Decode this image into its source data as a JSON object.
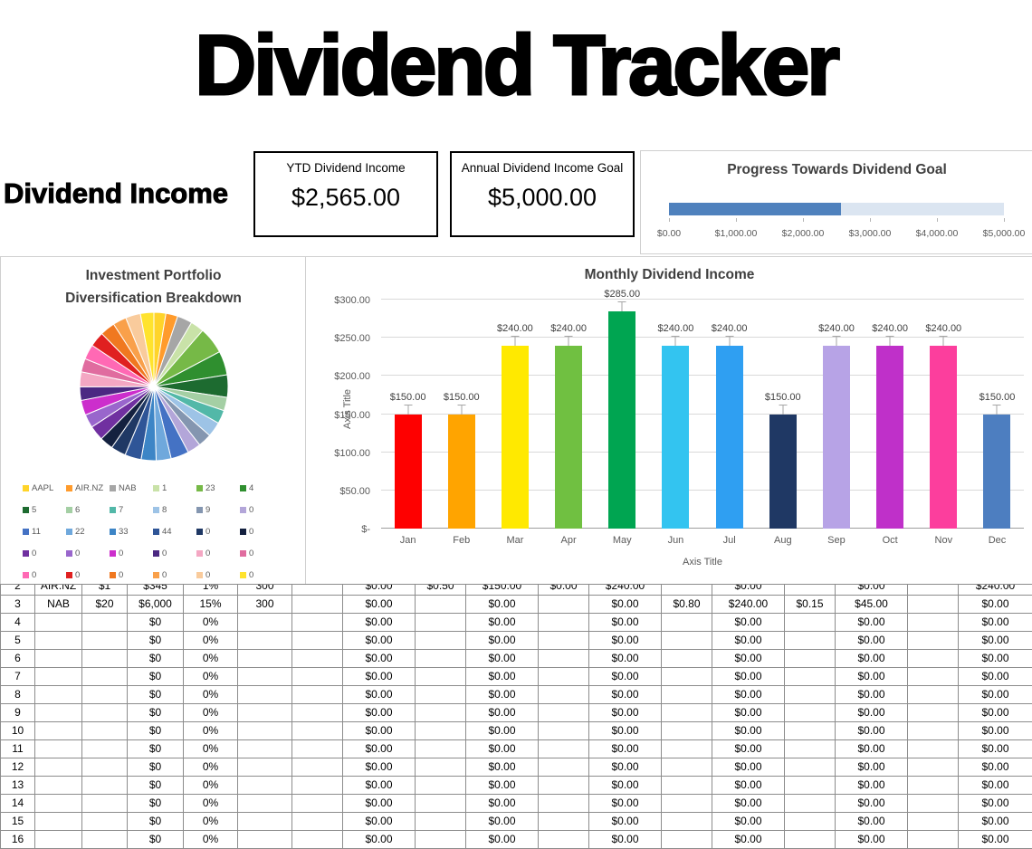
{
  "page": {
    "title": "Dividend Tracker"
  },
  "income": {
    "heading": "Dividend Income",
    "ytd": {
      "label": "YTD Dividend Income",
      "value": "$2,565.00"
    },
    "goal": {
      "label": "Annual Dividend Income Goal",
      "value": "$5,000.00"
    }
  },
  "chart_data": [
    {
      "id": "monthly-bar",
      "type": "bar",
      "title": "Monthly Dividend Income",
      "xlabel": "Axis Title",
      "ylabel": "Axis Title",
      "categories": [
        "Jan",
        "Feb",
        "Mar",
        "Apr",
        "May",
        "Jun",
        "Jul",
        "Aug",
        "Sep",
        "Oct",
        "Nov",
        "Dec"
      ],
      "values": [
        150,
        150,
        240,
        240,
        285,
        240,
        240,
        150,
        240,
        240,
        240,
        150
      ],
      "value_labels": [
        "$150.00",
        "$150.00",
        "$240.00",
        "$240.00",
        "$285.00",
        "$240.00",
        "$240.00",
        "$150.00",
        "$240.00",
        "$240.00",
        "$240.00",
        "$150.00"
      ],
      "bar_colors": [
        "#fe0000",
        "#ffa400",
        "#ffe900",
        "#70c041",
        "#00a551",
        "#33c4f0",
        "#2f9ff2",
        "#1f3864",
        "#b7a3e6",
        "#bf30c9",
        "#fc3e9d",
        "#4d7ec0"
      ],
      "ylim": [
        0,
        300
      ],
      "ytick_step": 50,
      "ytick_labels": [
        "$-",
        "$50.00",
        "$100.00",
        "$150.00",
        "$200.00",
        "$250.00",
        "$300.00"
      ],
      "grid": true,
      "legend": "none"
    },
    {
      "id": "progress",
      "type": "bar",
      "orientation": "horizontal",
      "title": "Progress Towards Dividend Goal",
      "value": 2565,
      "xlim": [
        0,
        5000
      ],
      "xtick_labels": [
        "$0.00",
        "$1,000.00",
        "$2,000.00",
        "$3,000.00",
        "$4,000.00",
        "$5,000.00"
      ],
      "fill_color": "#4f81bd",
      "track_color": "#dbe5f1"
    },
    {
      "id": "portfolio-pie",
      "type": "pie",
      "title": [
        "Investment Portfolio",
        "Diversification Breakdown"
      ],
      "slices": [
        {
          "label": "AAPL",
          "color": "#ffd42a",
          "value": 0.8
        },
        {
          "label": "AIR.NZ",
          "color": "#ff9b2c",
          "value": 0.8
        },
        {
          "label": "NAB",
          "color": "#a6a6a6",
          "value": 1.0
        },
        {
          "label": "1",
          "color": "#c9e2a8",
          "value": 0.9
        },
        {
          "label": "23",
          "color": "#76b947",
          "value": 1.8
        },
        {
          "label": "4",
          "color": "#2f8f2f",
          "value": 1.6
        },
        {
          "label": "5",
          "color": "#1d6b30",
          "value": 1.5
        },
        {
          "label": "6",
          "color": "#a4cfa4",
          "value": 0.9
        },
        {
          "label": "7",
          "color": "#52b8a8",
          "value": 0.9
        },
        {
          "label": "8",
          "color": "#9dc3e6",
          "value": 1.0
        },
        {
          "label": "9",
          "color": "#8496b0",
          "value": 0.9
        },
        {
          "label": "0",
          "color": "#b3a6d9",
          "value": 0.9
        },
        {
          "label": "11",
          "color": "#4472c4",
          "value": 1.2
        },
        {
          "label": "22",
          "color": "#6fa8dc",
          "value": 1.0
        },
        {
          "label": "33",
          "color": "#3d85c6",
          "value": 1.0
        },
        {
          "label": "44",
          "color": "#2f5597",
          "value": 1.1
        },
        {
          "label": "0",
          "color": "#1f3864",
          "value": 1.0
        },
        {
          "label": "0",
          "color": "#14213f",
          "value": 0.9
        },
        {
          "label": "0",
          "color": "#7030a0",
          "value": 1.0
        },
        {
          "label": "0",
          "color": "#9966cc",
          "value": 0.9
        },
        {
          "label": "0",
          "color": "#cc2ecc",
          "value": 1.0
        },
        {
          "label": "0",
          "color": "#4b2882",
          "value": 0.9
        },
        {
          "label": "0",
          "color": "#f4a7c3",
          "value": 1.0
        },
        {
          "label": "0",
          "color": "#e06c9f",
          "value": 0.9
        },
        {
          "label": "0",
          "color": "#ff69b4",
          "value": 1.0
        },
        {
          "label": "0",
          "color": "#e02020",
          "value": 1.0
        },
        {
          "label": "0",
          "color": "#f07820",
          "value": 1.0
        },
        {
          "label": "0",
          "color": "#f9a04a",
          "value": 0.9
        },
        {
          "label": "0",
          "color": "#f9cb9c",
          "value": 1.0
        },
        {
          "label": "0",
          "color": "#ffe32e",
          "value": 0.9
        }
      ]
    }
  ],
  "table": {
    "rows": [
      {
        "num": "2",
        "clipped": true,
        "cells": [
          "AIR.NZ",
          "$1",
          "$345",
          "1%",
          "300",
          "",
          "$0.00",
          "$0.50",
          "$150.00",
          "$0.00",
          "$240.00",
          "",
          "$0.00",
          "",
          "$0.00",
          "",
          "$240.00"
        ]
      },
      {
        "num": "3",
        "cells": [
          "NAB",
          "$20",
          "$6,000",
          "15%",
          "300",
          "",
          "$0.00",
          "",
          "$0.00",
          "",
          "$0.00",
          "$0.80",
          "$240.00",
          "$0.15",
          "$45.00",
          "",
          "$0.00"
        ]
      },
      {
        "num": "4",
        "cells": [
          "",
          "",
          "$0",
          "0%",
          "",
          "",
          "$0.00",
          "",
          "$0.00",
          "",
          "$0.00",
          "",
          "$0.00",
          "",
          "$0.00",
          "",
          "$0.00"
        ]
      },
      {
        "num": "5",
        "cells": [
          "",
          "",
          "$0",
          "0%",
          "",
          "",
          "$0.00",
          "",
          "$0.00",
          "",
          "$0.00",
          "",
          "$0.00",
          "",
          "$0.00",
          "",
          "$0.00"
        ]
      },
      {
        "num": "6",
        "cells": [
          "",
          "",
          "$0",
          "0%",
          "",
          "",
          "$0.00",
          "",
          "$0.00",
          "",
          "$0.00",
          "",
          "$0.00",
          "",
          "$0.00",
          "",
          "$0.00"
        ]
      },
      {
        "num": "7",
        "cells": [
          "",
          "",
          "$0",
          "0%",
          "",
          "",
          "$0.00",
          "",
          "$0.00",
          "",
          "$0.00",
          "",
          "$0.00",
          "",
          "$0.00",
          "",
          "$0.00"
        ]
      },
      {
        "num": "8",
        "cells": [
          "",
          "",
          "$0",
          "0%",
          "",
          "",
          "$0.00",
          "",
          "$0.00",
          "",
          "$0.00",
          "",
          "$0.00",
          "",
          "$0.00",
          "",
          "$0.00"
        ]
      },
      {
        "num": "9",
        "cells": [
          "",
          "",
          "$0",
          "0%",
          "",
          "",
          "$0.00",
          "",
          "$0.00",
          "",
          "$0.00",
          "",
          "$0.00",
          "",
          "$0.00",
          "",
          "$0.00"
        ]
      },
      {
        "num": "10",
        "cells": [
          "",
          "",
          "$0",
          "0%",
          "",
          "",
          "$0.00",
          "",
          "$0.00",
          "",
          "$0.00",
          "",
          "$0.00",
          "",
          "$0.00",
          "",
          "$0.00"
        ]
      },
      {
        "num": "11",
        "cells": [
          "",
          "",
          "$0",
          "0%",
          "",
          "",
          "$0.00",
          "",
          "$0.00",
          "",
          "$0.00",
          "",
          "$0.00",
          "",
          "$0.00",
          "",
          "$0.00"
        ]
      },
      {
        "num": "12",
        "cells": [
          "",
          "",
          "$0",
          "0%",
          "",
          "",
          "$0.00",
          "",
          "$0.00",
          "",
          "$0.00",
          "",
          "$0.00",
          "",
          "$0.00",
          "",
          "$0.00"
        ]
      },
      {
        "num": "13",
        "cells": [
          "",
          "",
          "$0",
          "0%",
          "",
          "",
          "$0.00",
          "",
          "$0.00",
          "",
          "$0.00",
          "",
          "$0.00",
          "",
          "$0.00",
          "",
          "$0.00"
        ]
      },
      {
        "num": "14",
        "cells": [
          "",
          "",
          "$0",
          "0%",
          "",
          "",
          "$0.00",
          "",
          "$0.00",
          "",
          "$0.00",
          "",
          "$0.00",
          "",
          "$0.00",
          "",
          "$0.00"
        ]
      },
      {
        "num": "15",
        "cells": [
          "",
          "",
          "$0",
          "0%",
          "",
          "",
          "$0.00",
          "",
          "$0.00",
          "",
          "$0.00",
          "",
          "$0.00",
          "",
          "$0.00",
          "",
          "$0.00"
        ]
      },
      {
        "num": "16",
        "cells": [
          "",
          "",
          "$0",
          "0%",
          "",
          "",
          "$0.00",
          "",
          "$0.00",
          "",
          "$0.00",
          "",
          "$0.00",
          "",
          "$0.00",
          "",
          "$0.00"
        ]
      }
    ]
  }
}
